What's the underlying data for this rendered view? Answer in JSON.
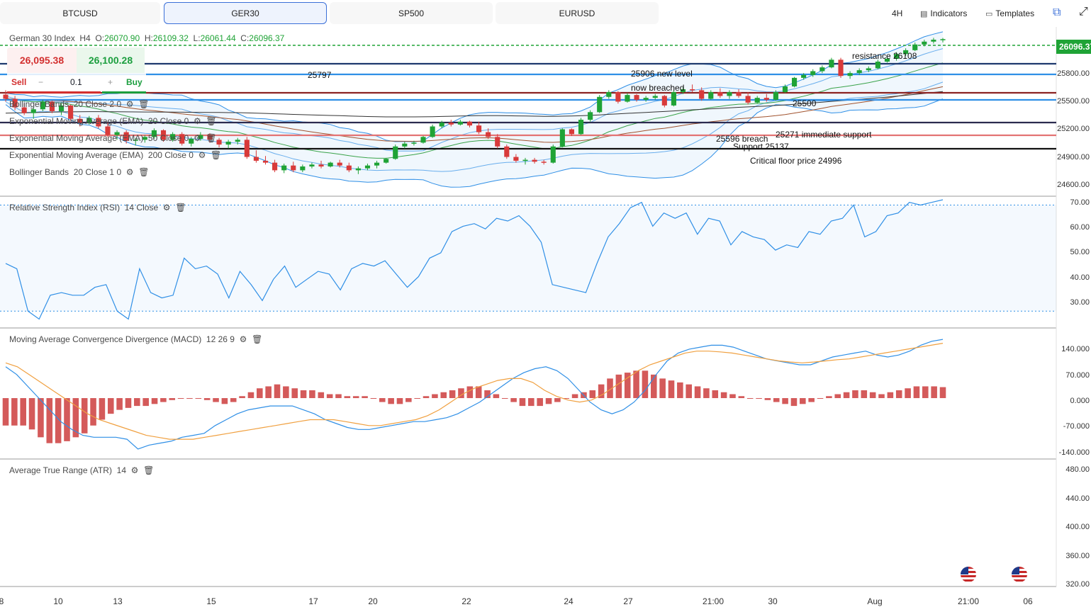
{
  "tabs": [
    {
      "label": "BTCUSD",
      "active": false
    },
    {
      "label": "GER30",
      "active": true
    },
    {
      "label": "SP500",
      "active": false
    },
    {
      "label": "EURUSD",
      "active": false
    }
  ],
  "toolbar": {
    "interval": "4H",
    "indicators": "Indicators",
    "templates": "Templates"
  },
  "instrument": {
    "name": "German 30 Index",
    "tf": "H4",
    "o_label": "O:",
    "o": "26070.90",
    "h_label": "H:",
    "h": "26109.32",
    "l_label": "L:",
    "l": "26061.44",
    "c_label": "C:",
    "c": "26096.37"
  },
  "trade": {
    "sell_price": "26,095.38",
    "buy_price": "26,100.28",
    "sell_label": "Sell",
    "buy_label": "Buy",
    "qty": "0.1",
    "minus": "−",
    "plus": "+"
  },
  "last_price": "26096.37",
  "indicators": [
    {
      "name": "Bollinger Bands",
      "params": "20   Close   2   0"
    },
    {
      "name": "Exponential Moving Average (EMA)",
      "params": "20   Close   0"
    },
    {
      "name": "Exponential Moving Average (EMA)",
      "params": "50   Close   0"
    },
    {
      "name": "Exponential Moving Average (EMA)",
      "params": "200   Close   0"
    },
    {
      "name": "Bollinger Bands",
      "params": "20   Close   1   0"
    }
  ],
  "rsi_label": {
    "name": "Relative Strength Index (RSI)",
    "params": "14   Close"
  },
  "macd_label": {
    "name": "Moving Average Convergence Divergence (MACD)",
    "params": "12   26   9"
  },
  "atr_label": {
    "name": "Average True Range (ATR)",
    "params": "14"
  },
  "annotations": {
    "a25797": "25797",
    "a25906a": "25906 new level",
    "a25906b": "now breached",
    "resistance": "resistance 26108",
    "a25500": "25500",
    "a25596": "25596 breach",
    "a25271": "25271 immediate support",
    "support": "Support 25137",
    "floor": "Critical floor price 24996"
  },
  "price_axis": [
    "25800.00",
    "25500.00",
    "25200.00",
    "24900.00",
    "24600.00"
  ],
  "rsi_axis": [
    "70.00",
    "60.00",
    "50.00",
    "40.00",
    "30.00"
  ],
  "macd_axis": [
    "140.000",
    "70.000",
    "0.000",
    "-70.000",
    "-140.000"
  ],
  "atr_axis": [
    "480.00",
    "440.00",
    "400.00",
    "360.00",
    "320.00"
  ],
  "x_axis": [
    "8",
    "10",
    "13",
    "15",
    "17",
    "20",
    "22",
    "24",
    "27",
    "21:00",
    "30",
    "Aug",
    "21:00",
    "06"
  ],
  "colors": {
    "up": "#1fa336",
    "down": "#d83a3a",
    "bb": "#2f8fe6",
    "ema20": "#3aa34a",
    "ema50": "#a0522d",
    "ema200": "#333333",
    "rsi": "#2f8fe6",
    "macd": "#2f8fe6",
    "signal": "#f0a040",
    "hist": "#d45a5a"
  },
  "levels": [
    {
      "label": "26096.37",
      "color": "#1fa336",
      "style": "dashed"
    },
    {
      "label": "25906",
      "color": "#1e3a6e",
      "style": "solid"
    },
    {
      "label": "25797",
      "color": "#2f8fe6",
      "style": "solid"
    },
    {
      "label": "25596",
      "color": "#8b2323",
      "style": "solid"
    },
    {
      "label": "25500",
      "color": "#2f8fe6",
      "style": "solid"
    },
    {
      "label": "25271",
      "color": "#2b2b4f",
      "style": "solid"
    },
    {
      "label": "25137",
      "color": "#e37373",
      "style": "solid"
    },
    {
      "label": "24996",
      "color": "#111111",
      "style": "solid"
    }
  ],
  "chart_data": {
    "type": "candlestick",
    "instrument": "German 30 Index",
    "timeframe": "H4",
    "ohlc_last": {
      "open": 26070.9,
      "high": 26109.32,
      "low": 26061.44,
      "close": 26096.37
    },
    "candles": [
      [
        25514,
        25560,
        25440,
        25470
      ],
      [
        25470,
        25500,
        25350,
        25380
      ],
      [
        25380,
        25420,
        25300,
        25320
      ],
      [
        25320,
        25380,
        25260,
        25360
      ],
      [
        25360,
        25460,
        25340,
        25440
      ],
      [
        25440,
        25450,
        25320,
        25340
      ],
      [
        25340,
        25420,
        25300,
        25400
      ],
      [
        25400,
        25410,
        25240,
        25260
      ],
      [
        25260,
        25300,
        25180,
        25220
      ],
      [
        25220,
        25290,
        25200,
        25270
      ],
      [
        25270,
        25300,
        25160,
        25180
      ],
      [
        25180,
        25220,
        25070,
        25090
      ],
      [
        25090,
        25140,
        25040,
        25120
      ],
      [
        25120,
        25140,
        25000,
        25030
      ],
      [
        25030,
        25060,
        24980,
        25040
      ],
      [
        25040,
        25090,
        25010,
        25070
      ],
      [
        25070,
        25160,
        25050,
        25140
      ],
      [
        25140,
        25150,
        25020,
        25040
      ],
      [
        25040,
        25120,
        25020,
        25100
      ],
      [
        25100,
        25120,
        24980,
        25000
      ],
      [
        25000,
        25070,
        24970,
        25050
      ],
      [
        25050,
        25120,
        25030,
        25090
      ],
      [
        25090,
        25110,
        25010,
        25040
      ],
      [
        25040,
        25060,
        24960,
        24990
      ],
      [
        24990,
        25040,
        24950,
        25020
      ],
      [
        25020,
        25060,
        24990,
        25040
      ],
      [
        25040,
        25070,
        24840,
        24860
      ],
      [
        24860,
        24930,
        24800,
        24820
      ],
      [
        24820,
        24870,
        24780,
        24800
      ],
      [
        24800,
        24830,
        24700,
        24720
      ],
      [
        24720,
        24790,
        24690,
        24770
      ],
      [
        24770,
        24810,
        24700,
        24720
      ],
      [
        24720,
        24780,
        24700,
        24760
      ],
      [
        24760,
        24800,
        24740,
        24780
      ],
      [
        24780,
        24820,
        24740,
        24760
      ],
      [
        24760,
        24810,
        24750,
        24800
      ],
      [
        24800,
        24830,
        24750,
        24770
      ],
      [
        24770,
        24800,
        24700,
        24720
      ],
      [
        24720,
        24760,
        24680,
        24740
      ],
      [
        24740,
        24790,
        24720,
        24770
      ],
      [
        24770,
        24820,
        24740,
        24800
      ],
      [
        24800,
        24850,
        24790,
        24840
      ],
      [
        24840,
        24990,
        24830,
        24970
      ],
      [
        24970,
        25020,
        24950,
        25000
      ],
      [
        25000,
        25030,
        24980,
        25010
      ],
      [
        25010,
        25080,
        25000,
        25070
      ],
      [
        25070,
        25200,
        25060,
        25180
      ],
      [
        25180,
        25240,
        25160,
        25220
      ],
      [
        25220,
        25250,
        25180,
        25200
      ],
      [
        25200,
        25250,
        25190,
        25230
      ],
      [
        25230,
        25240,
        25170,
        25190
      ],
      [
        25190,
        25230,
        25100,
        25120
      ],
      [
        25120,
        25160,
        25050,
        25070
      ],
      [
        25070,
        25100,
        24950,
        24970
      ],
      [
        24970,
        24990,
        24840,
        24860
      ],
      [
        24860,
        24890,
        24800,
        24820
      ],
      [
        24820,
        24850,
        24780,
        24830
      ],
      [
        24830,
        24850,
        24790,
        24810
      ],
      [
        24810,
        24830,
        24780,
        24800
      ],
      [
        24800,
        24990,
        24790,
        24970
      ],
      [
        24970,
        25160,
        24960,
        25150
      ],
      [
        25150,
        25160,
        25080,
        25100
      ],
      [
        25100,
        25270,
        25090,
        25250
      ],
      [
        25250,
        25350,
        25230,
        25330
      ],
      [
        25330,
        25510,
        25320,
        25490
      ],
      [
        25490,
        25560,
        25470,
        25540
      ],
      [
        25540,
        25550,
        25420,
        25440
      ],
      [
        25440,
        25530,
        25430,
        25510
      ],
      [
        25510,
        25520,
        25440,
        25460
      ],
      [
        25460,
        25500,
        25440,
        25480
      ],
      [
        25480,
        25520,
        25460,
        25500
      ],
      [
        25500,
        25510,
        25380,
        25400
      ],
      [
        25400,
        25560,
        25390,
        25540
      ],
      [
        25540,
        25590,
        25520,
        25570
      ],
      [
        25570,
        25620,
        25540,
        25560
      ],
      [
        25560,
        25590,
        25450,
        25470
      ],
      [
        25470,
        25560,
        25460,
        25540
      ],
      [
        25540,
        25580,
        25480,
        25500
      ],
      [
        25500,
        25560,
        25470,
        25540
      ],
      [
        25540,
        25570,
        25480,
        25500
      ],
      [
        25500,
        25540,
        25410,
        25430
      ],
      [
        25430,
        25500,
        25420,
        25480
      ],
      [
        25480,
        25520,
        25440,
        25460
      ],
      [
        25460,
        25560,
        25450,
        25540
      ],
      [
        25540,
        25620,
        25530,
        25600
      ],
      [
        25600,
        25700,
        25590,
        25690
      ],
      [
        25690,
        25740,
        25670,
        25720
      ],
      [
        25720,
        25780,
        25700,
        25760
      ],
      [
        25760,
        25820,
        25740,
        25800
      ],
      [
        25800,
        25900,
        25790,
        25880
      ],
      [
        25880,
        25900,
        25690,
        25710
      ],
      [
        25710,
        25760,
        25680,
        25740
      ],
      [
        25740,
        25790,
        25720,
        25770
      ],
      [
        25770,
        25810,
        25750,
        25790
      ],
      [
        25790,
        25880,
        25780,
        25860
      ],
      [
        25860,
        25910,
        25850,
        25890
      ],
      [
        25890,
        25960,
        25870,
        25940
      ],
      [
        25940,
        26000,
        25920,
        25980
      ],
      [
        25980,
        26060,
        25970,
        26040
      ],
      [
        26040,
        26090,
        26020,
        26070
      ],
      [
        26070,
        26110,
        26050,
        26090
      ],
      [
        26090,
        26109,
        26061,
        26096
      ]
    ],
    "rsi": [
      48,
      46,
      30,
      27,
      36,
      37,
      36,
      36,
      39,
      40,
      30,
      27,
      46,
      37,
      35,
      36,
      50,
      46,
      47,
      44,
      35,
      45,
      40,
      34,
      42,
      47,
      39,
      42,
      45,
      44,
      38,
      46,
      48,
      47,
      49,
      44,
      39,
      43,
      50,
      52,
      60,
      62,
      63,
      61,
      65,
      64,
      66,
      62,
      56,
      40,
      39,
      38,
      37,
      48,
      58,
      63,
      69,
      71,
      62,
      67,
      65,
      67,
      59,
      65,
      64,
      55,
      60,
      58,
      57,
      53,
      55,
      54,
      60,
      59,
      64,
      65,
      70,
      58,
      60,
      66,
      67,
      71,
      70,
      71,
      72
    ],
    "rsi_levels": [
      70,
      30
    ],
    "macd": [
      80,
      60,
      30,
      0,
      -30,
      -60,
      -80,
      -95,
      -100,
      -100,
      -100,
      -105,
      -130,
      -120,
      -115,
      -110,
      -100,
      -95,
      -90,
      -70,
      -55,
      -40,
      -30,
      -25,
      -20,
      -20,
      -20,
      -30,
      -40,
      -55,
      -65,
      -75,
      -80,
      -80,
      -75,
      -70,
      -65,
      -60,
      -60,
      -55,
      -50,
      -40,
      -25,
      -10,
      10,
      30,
      50,
      65,
      75,
      80,
      70,
      50,
      20,
      -10,
      -30,
      -40,
      -30,
      -10,
      20,
      60,
      95,
      115,
      125,
      130,
      135,
      135,
      130,
      120,
      110,
      100,
      95,
      90,
      85,
      85,
      95,
      105,
      110,
      115,
      120,
      110,
      105,
      110,
      120,
      135,
      145,
      150
    ],
    "signal": [
      90,
      80,
      60,
      40,
      20,
      0,
      -20,
      -40,
      -55,
      -65,
      -75,
      -85,
      -95,
      -100,
      -105,
      -105,
      -105,
      -100,
      -95,
      -90,
      -85,
      -80,
      -75,
      -70,
      -65,
      -60,
      -55,
      -55,
      -55,
      -60,
      -65,
      -70,
      -70,
      -65,
      -60,
      -55,
      -45,
      -30,
      -10,
      10,
      25,
      35,
      45,
      50,
      50,
      40,
      20,
      5,
      -5,
      -10,
      -5,
      10,
      30,
      50,
      70,
      85,
      95,
      105,
      115,
      120,
      120,
      118,
      115,
      110,
      105,
      100,
      95,
      92,
      90,
      92,
      95,
      98,
      100,
      105,
      110,
      115,
      120,
      125,
      130,
      135,
      140
    ],
    "macd_hist": [
      -70,
      -70,
      -70,
      -80,
      -100,
      -115,
      -115,
      -110,
      -100,
      -90,
      -70,
      -55,
      -40,
      -30,
      -25,
      -20,
      -20,
      -15,
      -10,
      -5,
      0,
      0,
      0,
      -5,
      -10,
      -15,
      -10,
      5,
      15,
      25,
      30,
      35,
      30,
      25,
      20,
      20,
      15,
      10,
      10,
      5,
      5,
      5,
      0,
      -10,
      -15,
      -15,
      -10,
      0,
      5,
      10,
      15,
      20,
      25,
      30,
      30,
      20,
      10,
      0,
      -10,
      -20,
      -20,
      -20,
      -15,
      -10,
      0,
      10,
      15,
      20,
      35,
      50,
      60,
      65,
      70,
      70,
      60,
      50,
      45,
      40,
      35,
      30,
      25,
      20,
      15,
      10,
      5,
      0,
      0,
      -5,
      -10,
      -15,
      -20,
      -15,
      -10,
      0,
      5,
      10,
      15,
      20,
      20,
      15,
      10,
      15,
      20,
      25,
      30,
      30,
      30,
      28
    ],
    "atr_ylim": [
      320,
      480
    ],
    "price_ylim": [
      24500,
      26150
    ],
    "rsi_ylim": [
      25,
      72
    ],
    "macd_ylim": [
      -150,
      170
    ]
  }
}
